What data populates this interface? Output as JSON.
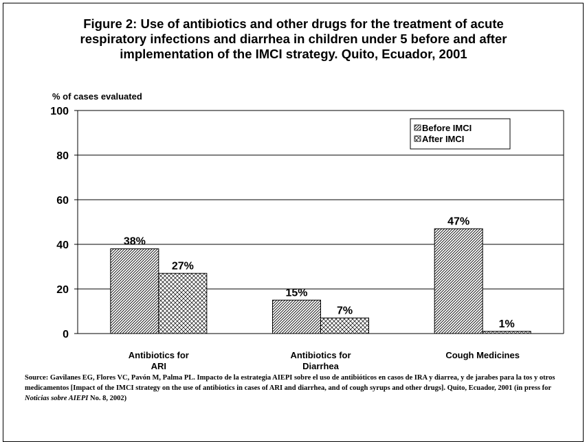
{
  "title_lines": [
    "Figure 2: Use of antibiotics and other drugs for the treatment of acute",
    "respiratory infections and diarrhea in children under 5 before and after",
    "implementation of the IMCI strategy. Quito, Ecuador, 2001"
  ],
  "source": {
    "part1": "Source: Gavilanes EG, Flores VC, Pavón M, Palma PL.  Impacto de la estrategia AIEPI sobre el uso de antibióticos en casos de IRA y diarrea, y de jarabes para la tos y otros medicamentos [Impact of the IMCI strategy on the use of antibiotics in cases of ARI and diarrhea, and of cough syrups and other drugs].  Quito, Ecuador, 2001 (in press for ",
    "italic": "Noticias sobre AIEPI",
    "part2": " No. 8, 2002)"
  },
  "chart_data": {
    "type": "bar",
    "ylabel": "% of cases evaluated",
    "ylim": [
      0,
      100
    ],
    "yticks": [
      "0",
      "20",
      "40",
      "60",
      "80",
      "100"
    ],
    "grid": true,
    "legend_position": "top-right",
    "categories": [
      [
        "Antibiotics for",
        "ARI"
      ],
      [
        "Antibiotics for",
        "Diarrhea"
      ],
      [
        "Cough Medicines"
      ]
    ],
    "series": [
      {
        "name": "Before IMCI",
        "values": [
          38,
          15,
          47
        ],
        "labels": [
          "38%",
          "15%",
          "47%"
        ]
      },
      {
        "name": "After IMCI",
        "values": [
          27,
          7,
          1
        ],
        "labels": [
          "27%",
          "7%",
          "1%"
        ]
      }
    ]
  }
}
